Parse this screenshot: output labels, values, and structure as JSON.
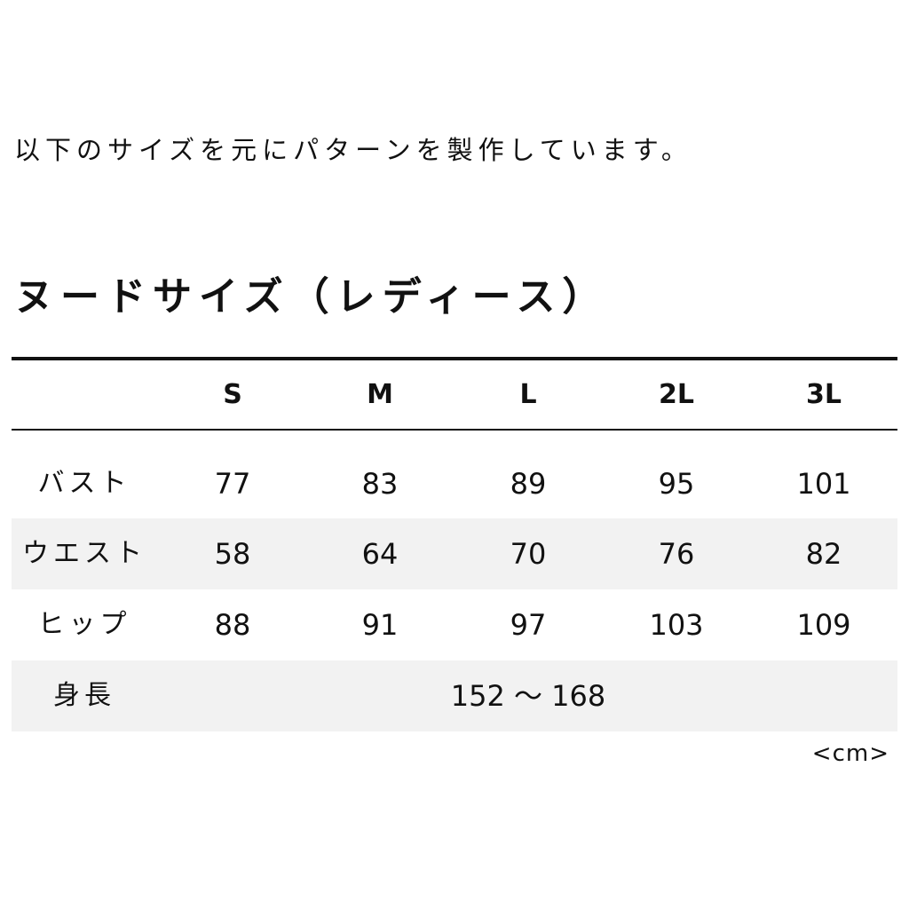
{
  "intro": "以下のサイズを元にパターンを製作しています。",
  "title": "ヌードサイズ（レディース）",
  "table": {
    "columns": [
      "S",
      "M",
      "L",
      "2L",
      "3L"
    ],
    "rows": [
      {
        "label": "バスト",
        "values": [
          "77",
          "83",
          "89",
          "95",
          "101"
        ]
      },
      {
        "label": "ウエスト",
        "values": [
          "58",
          "64",
          "70",
          "76",
          "82"
        ]
      },
      {
        "label": "ヒップ",
        "values": [
          "88",
          "91",
          "97",
          "103",
          "109"
        ]
      }
    ],
    "height_row": {
      "label": "身長",
      "value": "152 ～ 168"
    }
  },
  "unit": "<cm>",
  "colors": {
    "stripe": "#f2f2f2",
    "rule": "#111111"
  }
}
